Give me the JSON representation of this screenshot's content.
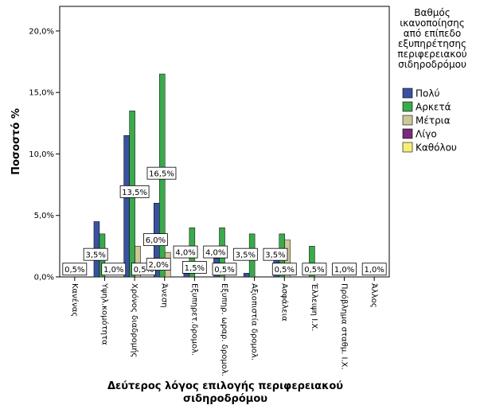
{
  "chart_data": {
    "type": "bar",
    "title": "",
    "ylabel": "Ποσοστό %",
    "xlabel_lines": [
      "Δεύτερος λόγος επιλογής περιφερειακού",
      "σιδηροδρόμου"
    ],
    "ylim": [
      0,
      22
    ],
    "yticks": [
      0,
      5,
      10,
      15,
      20
    ],
    "ytick_labels": [
      "0,0%",
      "5,0%",
      "10,0%",
      "15,0%",
      "20,0%"
    ],
    "categories": [
      "Κανένας",
      "Υψηλ.κομότητα",
      "Χρόνος διαδρομής",
      "Άνεση",
      "Εξυπηρετ.δρομολ.",
      "Εξυπηρ. ωραρ. δρομολ.",
      "Αξιοπιστία δρομολ.",
      "Ασφάλεια",
      "Έλλειψη Ι.Χ.",
      "Πρόβλημα σταθμ. Ι.Χ.",
      "Άλλος"
    ],
    "legend": {
      "title_lines": [
        "Βαθμός",
        "ικανοποίησης",
        "από επίπεδο",
        "εξυπηρέτησης",
        "περιφερειακού",
        "σιδηροδρόμου"
      ],
      "placement": "right"
    },
    "series": [
      {
        "name": "Πολύ",
        "color": "#3a52a0",
        "values": [
          0,
          4.5,
          11.5,
          6.0,
          0.3,
          1.5,
          0.3,
          1.5,
          0,
          0,
          0
        ]
      },
      {
        "name": "Αρκετά",
        "color": "#3aaa4a",
        "values": [
          0,
          3.5,
          13.5,
          16.5,
          4.0,
          4.0,
          3.5,
          3.5,
          2.5,
          0,
          0
        ]
      },
      {
        "name": "Μέτρια",
        "color": "#cfc79a",
        "values": [
          0,
          0,
          2.5,
          2.0,
          0,
          0,
          0,
          3.0,
          0,
          0,
          0
        ]
      },
      {
        "name": "Λίγο",
        "color": "#7a2a7a",
        "values": [
          0,
          0,
          0,
          0,
          0,
          0,
          0,
          0,
          0,
          0,
          0
        ]
      },
      {
        "name": "Καθόλου",
        "color": "#f7ee7a",
        "values": [
          0,
          0,
          0,
          0,
          0,
          0,
          0,
          0,
          0,
          0,
          0
        ]
      }
    ],
    "data_labels": [
      {
        "text": "0,5%",
        "cat": 0,
        "y": 0.6
      },
      {
        "text": "3,5%",
        "cat": 0.7,
        "y": 1.8
      },
      {
        "text": "1,0%",
        "cat": 1.3,
        "y": 0.6
      },
      {
        "text": "13,5%",
        "cat": 2,
        "y": 6.9
      },
      {
        "text": "0,5%",
        "cat": 2.3,
        "y": 0.6
      },
      {
        "text": "16,5%",
        "cat": 2.9,
        "y": 8.4
      },
      {
        "text": "6,0%",
        "cat": 2.7,
        "y": 3.0
      },
      {
        "text": "2,0%",
        "cat": 2.8,
        "y": 1.0
      },
      {
        "text": "4,0%",
        "cat": 3.7,
        "y": 2.0
      },
      {
        "text": "1,5%",
        "cat": 4.0,
        "y": 0.75
      },
      {
        "text": "4,0%",
        "cat": 4.7,
        "y": 2.0
      },
      {
        "text": "0,5%",
        "cat": 5.0,
        "y": 0.6
      },
      {
        "text": "3,5%",
        "cat": 5.7,
        "y": 1.8
      },
      {
        "text": "3,5%",
        "cat": 6.7,
        "y": 1.8
      },
      {
        "text": "0,5%",
        "cat": 7.0,
        "y": 0.6
      },
      {
        "text": "0,5%",
        "cat": 8.0,
        "y": 0.6
      },
      {
        "text": "1,0%",
        "cat": 9.0,
        "y": 0.6
      },
      {
        "text": "1,0%",
        "cat": 10.0,
        "y": 0.6
      }
    ]
  }
}
